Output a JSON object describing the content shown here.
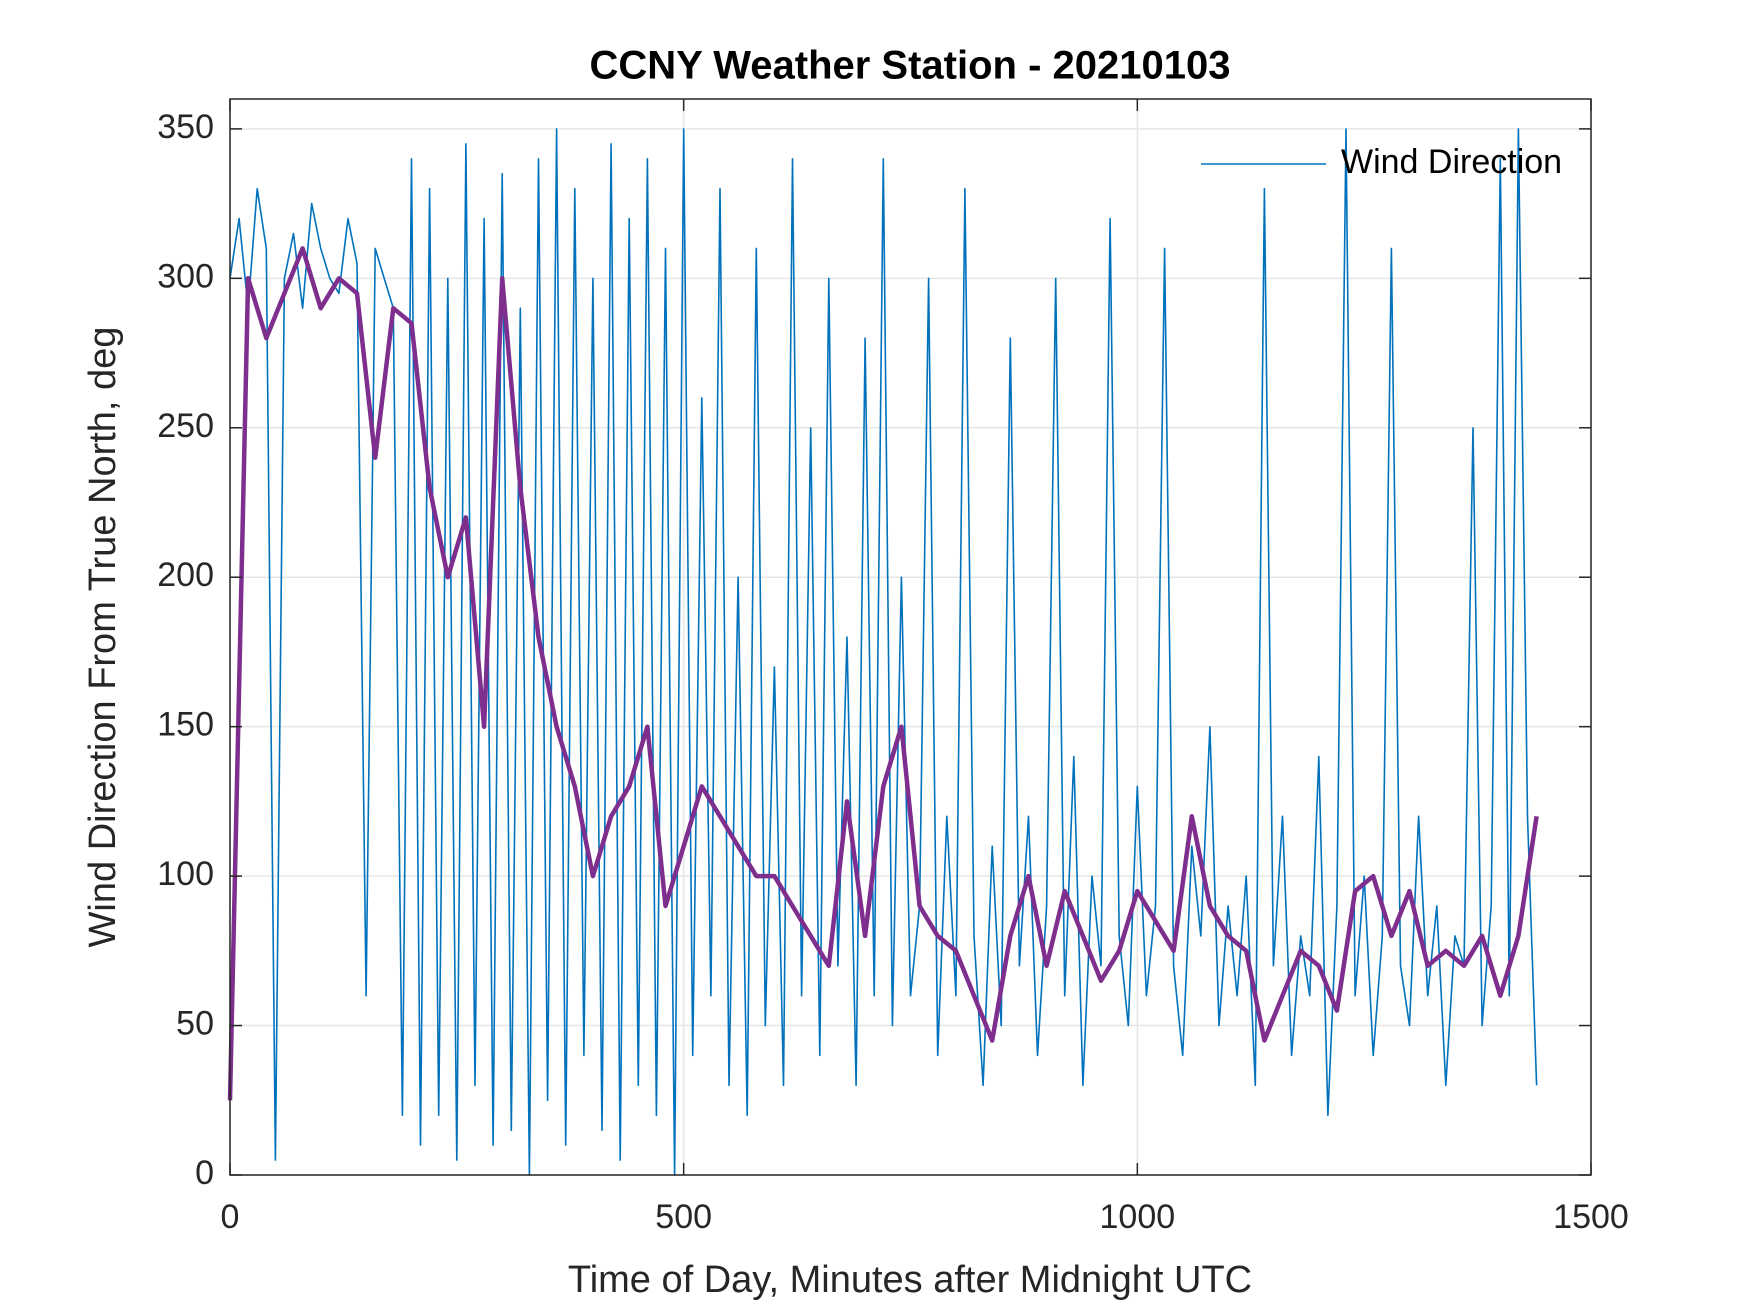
{
  "chart_data": {
    "type": "line",
    "title": "CCNY Weather Station - 20210103",
    "xlabel": "Time of Day, Minutes after Midnight UTC",
    "ylabel": "Wind Direction From True North, deg",
    "xlim": [
      0,
      1500
    ],
    "xticks": [
      0,
      500,
      1000,
      1500
    ],
    "ylim": [
      0,
      360
    ],
    "yticks": [
      0,
      50,
      100,
      150,
      200,
      250,
      300,
      350
    ],
    "grid": true,
    "legend": "northeast",
    "series": [
      {
        "name": "Wind Direction",
        "color": "#0072bd",
        "x": [
          0,
          10,
          20,
          30,
          40,
          50,
          60,
          70,
          80,
          90,
          100,
          110,
          120,
          130,
          140,
          150,
          160,
          170,
          180,
          190,
          200,
          210,
          220,
          230,
          240,
          250,
          260,
          270,
          280,
          290,
          300,
          310,
          320,
          330,
          340,
          350,
          360,
          370,
          380,
          390,
          400,
          410,
          420,
          430,
          440,
          450,
          460,
          470,
          480,
          490,
          500,
          510,
          520,
          530,
          540,
          550,
          560,
          570,
          580,
          590,
          600,
          610,
          620,
          630,
          640,
          650,
          660,
          670,
          680,
          690,
          700,
          710,
          720,
          730,
          740,
          750,
          760,
          770,
          780,
          790,
          800,
          810,
          820,
          830,
          840,
          850,
          860,
          870,
          880,
          890,
          900,
          910,
          920,
          930,
          940,
          950,
          960,
          970,
          980,
          990,
          1000,
          1010,
          1020,
          1030,
          1040,
          1050,
          1060,
          1070,
          1080,
          1090,
          1100,
          1110,
          1120,
          1130,
          1140,
          1150,
          1160,
          1170,
          1180,
          1190,
          1200,
          1210,
          1220,
          1230,
          1240,
          1250,
          1260,
          1270,
          1280,
          1290,
          1300,
          1310,
          1320,
          1330,
          1340,
          1350,
          1360,
          1370,
          1380,
          1390,
          1400,
          1410,
          1420,
          1430,
          1440
        ],
        "values": [
          300,
          320,
          290,
          330,
          310,
          5,
          300,
          315,
          290,
          325,
          310,
          300,
          295,
          320,
          305,
          60,
          310,
          300,
          290,
          20,
          340,
          10,
          330,
          20,
          300,
          5,
          345,
          30,
          320,
          10,
          335,
          15,
          290,
          0,
          340,
          25,
          350,
          10,
          330,
          40,
          300,
          15,
          345,
          5,
          320,
          30,
          340,
          20,
          310,
          0,
          350,
          40,
          260,
          60,
          330,
          30,
          200,
          20,
          310,
          50,
          170,
          30,
          340,
          60,
          250,
          40,
          300,
          70,
          180,
          30,
          280,
          60,
          340,
          50,
          200,
          60,
          90,
          300,
          40,
          120,
          60,
          330,
          80,
          30,
          110,
          50,
          280,
          70,
          120,
          40,
          90,
          300,
          60,
          140,
          30,
          100,
          70,
          320,
          80,
          50,
          130,
          60,
          90,
          310,
          70,
          40,
          110,
          80,
          150,
          50,
          90,
          60,
          100,
          30,
          330,
          70,
          120,
          40,
          80,
          60,
          140,
          20,
          90,
          350,
          60,
          100,
          40,
          80,
          310,
          70,
          50,
          120,
          60,
          90,
          30,
          80,
          70,
          250,
          50,
          90,
          340,
          60,
          350,
          120,
          30
        ]
      },
      {
        "color": "#7e2f8e",
        "x": [
          0,
          20,
          40,
          60,
          80,
          100,
          120,
          140,
          160,
          180,
          200,
          220,
          240,
          260,
          280,
          300,
          320,
          340,
          360,
          380,
          400,
          420,
          440,
          460,
          480,
          500,
          520,
          540,
          560,
          580,
          600,
          620,
          640,
          660,
          680,
          700,
          720,
          740,
          760,
          780,
          800,
          820,
          840,
          860,
          880,
          900,
          920,
          940,
          960,
          980,
          1000,
          1020,
          1040,
          1060,
          1080,
          1100,
          1120,
          1140,
          1160,
          1180,
          1200,
          1220,
          1240,
          1260,
          1280,
          1300,
          1320,
          1340,
          1360,
          1380,
          1400,
          1420,
          1440
        ],
        "values": [
          25,
          300,
          280,
          295,
          310,
          290,
          300,
          295,
          240,
          290,
          285,
          230,
          200,
          220,
          150,
          300,
          230,
          180,
          150,
          130,
          100,
          120,
          130,
          150,
          90,
          110,
          130,
          120,
          110,
          100,
          100,
          90,
          80,
          70,
          125,
          80,
          130,
          150,
          90,
          80,
          75,
          60,
          45,
          80,
          100,
          70,
          95,
          80,
          65,
          75,
          95,
          85,
          75,
          120,
          90,
          80,
          75,
          45,
          60,
          75,
          70,
          55,
          95,
          100,
          80,
          95,
          70,
          75,
          70,
          80,
          60,
          80,
          120
        ]
      }
    ]
  }
}
